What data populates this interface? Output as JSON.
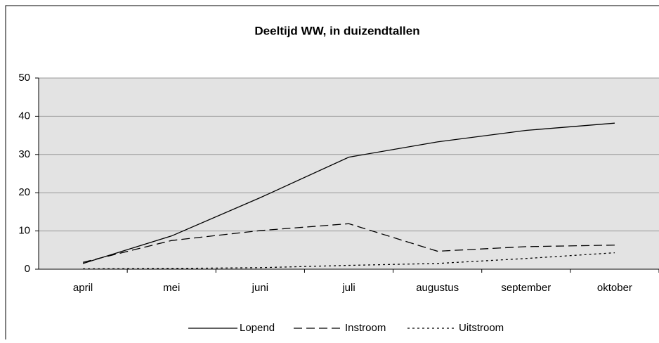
{
  "chart_data": {
    "type": "line",
    "title": "Deeltijd WW, in duizendtallen",
    "categories": [
      "april",
      "mei",
      "juni",
      "juli",
      "augustus",
      "september",
      "oktober"
    ],
    "series": [
      {
        "name": "Lopend",
        "color": "#000000",
        "dash": "solid",
        "values": [
          1.5,
          8.7,
          18.7,
          29.3,
          33.3,
          36.3,
          38.2
        ]
      },
      {
        "name": "Instroom",
        "color": "#000000",
        "dash": "dashed",
        "values": [
          1.8,
          7.5,
          10.1,
          11.9,
          4.7,
          5.9,
          6.3
        ]
      },
      {
        "name": "Uitstroom",
        "color": "#000000",
        "dash": "dotted",
        "values": [
          0.1,
          0.2,
          0.4,
          1.0,
          1.5,
          2.8,
          4.3
        ]
      }
    ],
    "ylim": [
      0,
      50
    ],
    "yticks": [
      0,
      10,
      20,
      30,
      40,
      50
    ],
    "grid": true
  }
}
